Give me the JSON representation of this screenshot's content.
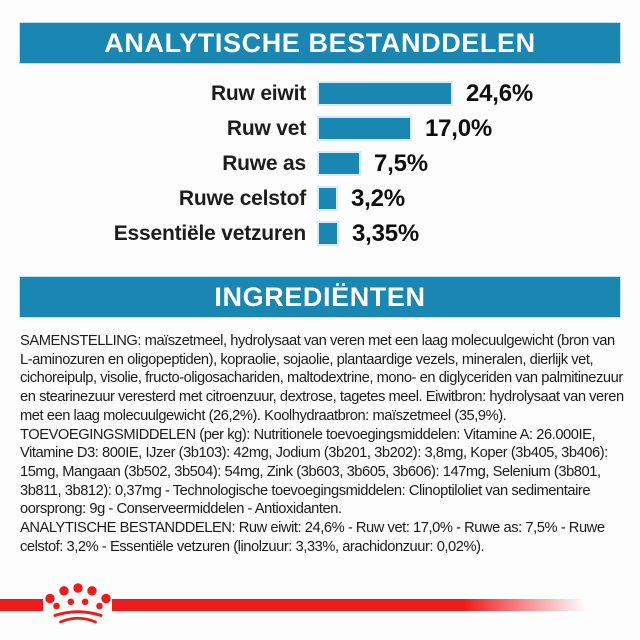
{
  "colors": {
    "banner_blue": "#1a86b2",
    "bar_blue": "#1a86b2",
    "bar_outline": "#d8ebf4",
    "text_dark": "#1c1c1c",
    "brand_red": "#ee1b1d",
    "background": "#fdfdfd"
  },
  "banners": {
    "analytical": "ANALYTISCHE BESTANDDELEN",
    "ingredients": "INGREDIËNTEN"
  },
  "chart_data": {
    "type": "bar",
    "orientation": "horizontal",
    "title": "ANALYTISCHE BESTANDDELEN",
    "categories": [
      "Ruw eiwit",
      "Ruw vet",
      "Ruwe as",
      "Ruwe celstof",
      "Essentiële vetzuren"
    ],
    "values": [
      24.6,
      17.0,
      7.5,
      3.2,
      3.35
    ],
    "value_labels": [
      "24,6%",
      "17,0%",
      "7,5%",
      "3,2%",
      "3,35%"
    ],
    "unit": "%",
    "xlim": [
      0,
      30
    ],
    "bar_color": "#1a86b2",
    "grid": false,
    "legend": false
  },
  "ingredients_text": {
    "samenstelling": "SAMENSTELLING: maïszetmeel, hydrolysaat van veren met een laag molecuulgewicht (bron van L-aminozuren en oligopeptiden), kopraolie, sojaolie, plantaardige vezels, mineralen, dierlijk vet, cichoreipulp, visolie, fructo-oligosachariden, maltodextrine, mono- en diglyceriden van palmitinezuur en stearinezuur veresterd met citroenzuur, dextrose, tagetes meel. Eiwitbron: hydrolysaat van veren met een laag molecuulgewicht (26,2%). Koolhydraatbron: maïszetmeel (35,9%).",
    "toevoegingsmiddelen": "TOEVOEGINGSMIDDELEN (per kg): Nutritionele toevoegingsmiddelen: Vitamine A: 26.000IE, Vitamine D3: 800IE, IJzer (3b103): 42mg, Jodium (3b201, 3b202): 3,8mg, Koper (3b405, 3b406): 15mg, Mangaan (3b502, 3b504): 54mg, Zink (3b603, 3b605, 3b606): 147mg, Selenium (3b801, 3b811, 3b812): 0,37mg - Technologische toevoegingsmiddelen: Clinoptiloliet van sedimentaire oorsprong: 9g - Conserveermiddelen - Antioxidanten.",
    "analytisch": "ANALYTISCHE BESTANDDELEN: Ruw eiwit: 24,6% - Ruw vet: 17,0% - Ruwe as: 7,5% - Ruwe celstof: 3,2% - Essentiële vetzuren (linolzuur: 3,33%, arachidonzuur: 0,02%)."
  },
  "footer": {
    "logo": "royal-canin-crown"
  }
}
